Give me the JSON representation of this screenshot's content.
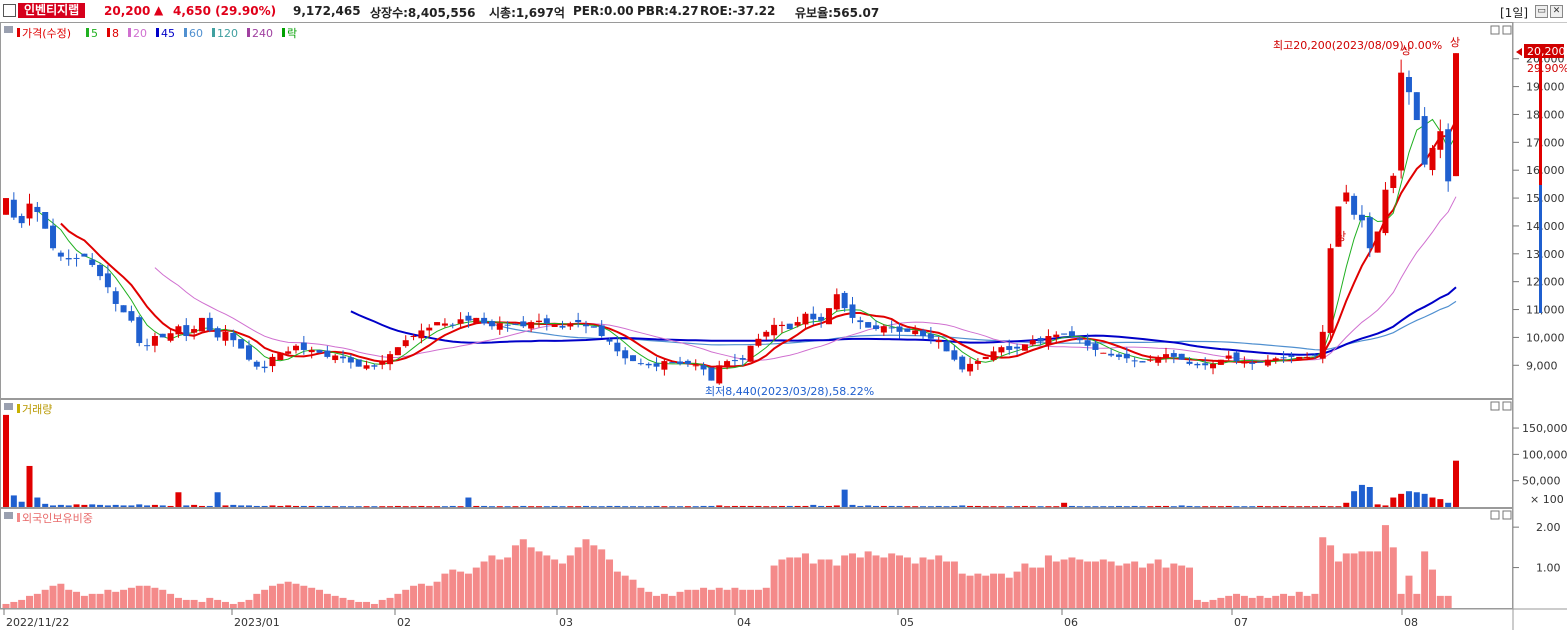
{
  "header": {
    "stock_name": "인벤티지랩",
    "price": "20,200",
    "change": "4,650 (29.90%)",
    "volume": "9,172,465",
    "listed_shares": "상장수:8,405,556",
    "market_cap": "시총:1,697억",
    "per": "PER:0.00",
    "pbr": "PBR:4.27",
    "roe": "ROE:-37.22",
    "reserve_ratio": "유보율:565.07",
    "period": "[1일]"
  },
  "price_legend": {
    "price_label": "가격(수정)",
    "ma_labels": [
      "5",
      "8",
      "20",
      "45",
      "60",
      "120",
      "240",
      "락"
    ],
    "ma_colors": [
      "#20b020",
      "#e00000",
      "#d070d0",
      "#0000c8",
      "#5090d0",
      "#40a0a0",
      "#a040a0",
      "#00a000"
    ]
  },
  "price_axis": {
    "ticks": [
      "20,000",
      "19,000",
      "18,000",
      "17,000",
      "16,000",
      "15,000",
      "14,000",
      "13,000",
      "12,000",
      "11,000",
      "10,000",
      "9,000"
    ],
    "current_price": "20,200",
    "current_pct": "29.90%"
  },
  "annotations": {
    "high": "최고20,200(2023/08/09),0.00%",
    "low": "최저8,440(2023/03/28),58.22%",
    "limit_up": "상"
  },
  "volume_panel": {
    "title": "거래량",
    "ticks": [
      "150,000",
      "100,000",
      "50,000"
    ],
    "unit": "× 100"
  },
  "foreign_panel": {
    "title": "외국인보유비중",
    "ticks": [
      "2.00",
      "1.00"
    ]
  },
  "date_axis": [
    "2022/11/22",
    "2023/01",
    "02",
    "03",
    "04",
    "05",
    "06",
    "07",
    "08"
  ],
  "colors": {
    "up": "#e00000",
    "down": "#1f5fcf",
    "foreign_bar": "#f48a8a"
  },
  "chart_data": {
    "type": "candlestick",
    "ylim": [
      8400,
      20600
    ],
    "close_series": [
      15000,
      14300,
      14100,
      14800,
      14500,
      13900,
      13200,
      12900,
      12800,
      12850,
      12900,
      12600,
      12200,
      11800,
      11200,
      10900,
      10600,
      9800,
      9700,
      10050,
      10000,
      10150,
      10400,
      10050,
      10300,
      10700,
      10250,
      10000,
      10200,
      9900,
      9600,
      9200,
      8950,
      8900,
      9300,
      9450,
      9500,
      9700,
      9550,
      9550,
      9450,
      9300,
      9350,
      9250,
      9100,
      8950,
      9000,
      8950,
      9150,
      9400,
      9650,
      9900,
      10050,
      10250,
      10350,
      10550,
      10500,
      10450,
      10650,
      10600,
      10700,
      10500,
      10400,
      10500,
      10450,
      10450,
      10400,
      10550,
      10600,
      10500,
      10450,
      10350,
      10500,
      10550,
      10400,
      10350,
      10050,
      9850,
      9500,
      9250,
      9150,
      9050,
      9000,
      8950,
      9150,
      9100,
      9050,
      9050,
      9000,
      8850,
      8450,
      9000,
      9150,
      9150,
      9200,
      9700,
      9950,
      10200,
      10450,
      10450,
      10300,
      10550,
      10850,
      10650,
      10600,
      11050,
      11550,
      11050,
      10700,
      10550,
      10350,
      10300,
      10400,
      10350,
      10200,
      10200,
      10250,
      10050,
      9950,
      9900,
      9500,
      9200,
      8850,
      9050,
      9150,
      9300,
      9500,
      9650,
      9550,
      9600,
      9750,
      9900,
      9850,
      10050,
      10100,
      10100,
      10050,
      9900,
      9700,
      9550,
      9450,
      9350,
      9300,
      9250,
      9150,
      9100,
      9200,
      9300,
      9400,
      9300,
      9200,
      9050,
      9000,
      9000,
      9050,
      9200,
      9350,
      9150,
      9100,
      9050,
      9100,
      9200,
      9250,
      9250,
      9300,
      9300,
      9300,
      9350,
      10200,
      13200,
      14700,
      15200,
      14400,
      14200,
      13200,
      13800,
      15300,
      15800,
      19500,
      18800,
      17800,
      16200,
      16800,
      17400,
      15600,
      20200
    ],
    "volume_series": [
      175000,
      22000,
      10000,
      78000,
      18000,
      6000,
      3000,
      4000,
      3000,
      5000,
      4000,
      5000,
      4000,
      3000,
      4000,
      3000,
      3000,
      5000,
      3000,
      4000,
      3000,
      2000,
      28000,
      3000,
      4000,
      2000,
      2000,
      28000,
      3000,
      4000,
      3000,
      3000,
      2000,
      2000,
      3000,
      2000,
      3000,
      2000,
      2000,
      2000,
      2000,
      2000,
      1500,
      1500,
      1500,
      1500,
      1500,
      1500,
      1500,
      1500,
      2000,
      1500,
      1500,
      2000,
      1500,
      1500,
      1500,
      2000,
      1500,
      18000,
      2000,
      2000,
      1500,
      1500,
      1500,
      1500,
      2000,
      1500,
      1500,
      1500,
      2000,
      1500,
      1500,
      1500,
      2000,
      1500,
      1500,
      2000,
      2000,
      1500,
      1500,
      1500,
      1500,
      2000,
      1500,
      1500,
      1500,
      1500,
      1500,
      2000,
      2000,
      3000,
      1500,
      2000,
      2000,
      2000,
      2000,
      1500,
      1500,
      2000,
      2000,
      2000,
      2000,
      4000,
      2000,
      2000,
      3000,
      33000,
      4000,
      2000,
      3000,
      2000,
      2000,
      2000,
      2000,
      1500,
      1500,
      1500,
      1500,
      2000,
      1500,
      2000,
      3000,
      2000,
      2000,
      1500,
      1500,
      1500,
      1500,
      1500,
      2000,
      1500,
      1500,
      1500,
      1500,
      8000,
      2000,
      1500,
      1500,
      1500,
      1500,
      1500,
      2000,
      1500,
      2000,
      1500,
      1500,
      2000,
      2000,
      1500,
      3000,
      2000,
      1500,
      1500,
      1500,
      1500,
      2000,
      1500,
      1500,
      1500,
      2000,
      1500,
      1500,
      2000,
      1500,
      1500,
      1500,
      1500,
      2000,
      1500,
      1500,
      8000,
      30000,
      42000,
      38000,
      5000,
      3000,
      18000,
      25000,
      30000,
      28000,
      25000,
      18000,
      15000,
      8000,
      88000
    ],
    "foreign_ratio_series": [
      0.1,
      0.15,
      0.2,
      0.3,
      0.35,
      0.45,
      0.55,
      0.6,
      0.45,
      0.4,
      0.3,
      0.35,
      0.35,
      0.45,
      0.4,
      0.45,
      0.5,
      0.55,
      0.55,
      0.5,
      0.45,
      0.35,
      0.25,
      0.2,
      0.2,
      0.15,
      0.25,
      0.2,
      0.15,
      0.1,
      0.15,
      0.2,
      0.35,
      0.45,
      0.55,
      0.6,
      0.65,
      0.6,
      0.55,
      0.5,
      0.45,
      0.35,
      0.3,
      0.25,
      0.2,
      0.15,
      0.15,
      0.1,
      0.2,
      0.25,
      0.35,
      0.45,
      0.55,
      0.6,
      0.55,
      0.65,
      0.85,
      0.95,
      0.9,
      0.85,
      1.0,
      1.15,
      1.3,
      1.2,
      1.25,
      1.55,
      1.7,
      1.5,
      1.4,
      1.3,
      1.2,
      1.1,
      1.3,
      1.5,
      1.7,
      1.55,
      1.45,
      1.2,
      0.9,
      0.8,
      0.7,
      0.5,
      0.4,
      0.3,
      0.35,
      0.3,
      0.4,
      0.45,
      0.45,
      0.5,
      0.45,
      0.5,
      0.45,
      0.5,
      0.45,
      0.45,
      0.45,
      0.5,
      1.05,
      1.2,
      1.25,
      1.25,
      1.35,
      1.1,
      1.2,
      1.2,
      1.05,
      1.3,
      1.35,
      1.25,
      1.4,
      1.3,
      1.25,
      1.35,
      1.3,
      1.25,
      1.1,
      1.25,
      1.2,
      1.3,
      1.15,
      1.15,
      0.85,
      0.8,
      0.85,
      0.8,
      0.85,
      0.85,
      0.75,
      0.9,
      1.1,
      1.0,
      1.0,
      1.3,
      1.15,
      1.2,
      1.25,
      1.2,
      1.15,
      1.15,
      1.2,
      1.15,
      1.05,
      1.1,
      1.15,
      1.0,
      1.1,
      1.2,
      1.0,
      1.1,
      1.05,
      1.0,
      0.2,
      0.15,
      0.2,
      0.25,
      0.3,
      0.35,
      0.3,
      0.25,
      0.3,
      0.25,
      0.3,
      0.35,
      0.3,
      0.4,
      0.3,
      0.35,
      1.75,
      1.55,
      1.15,
      1.35,
      1.35,
      1.4,
      1.4,
      1.4,
      2.05,
      1.5,
      0.35,
      0.8,
      0.35,
      1.4,
      0.95,
      0.3,
      0.3
    ]
  }
}
